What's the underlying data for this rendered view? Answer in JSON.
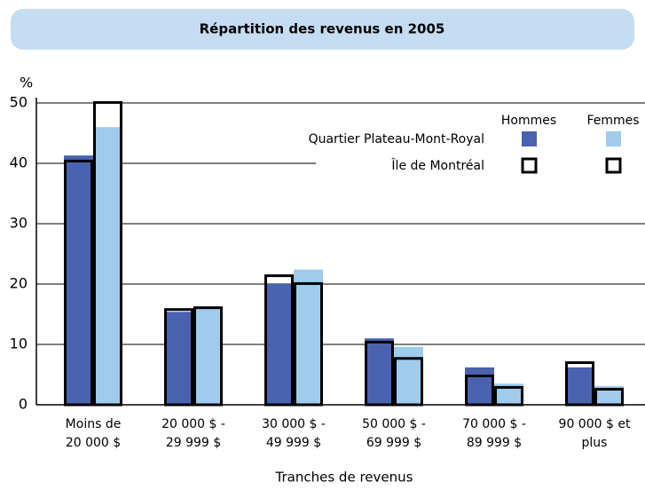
{
  "chart_data": {
    "type": "overlay-bar",
    "title": "Répartition des revenus en 2005",
    "y_label": "%",
    "x_label": "Tranches de revenus",
    "categories": [
      [
        "Moins de",
        "20 000 $"
      ],
      [
        "20 000 $ -",
        "29 999 $"
      ],
      [
        "30 000 $ -",
        "49 999 $"
      ],
      [
        "50 000 $ -",
        "69 999 $"
      ],
      [
        "70 000 $ -",
        "89 999 $"
      ],
      [
        "90 000 $ et",
        "plus"
      ]
    ],
    "columns": [
      "Hommes",
      "Femmes"
    ],
    "series": [
      {
        "name": "Quartier Plateau-Mont-Royal",
        "style": "filled",
        "colors": [
          "#4a62b0",
          "#9fcbec"
        ],
        "values": [
          [
            41.3,
            15.4,
            20,
            11,
            6.2,
            6.2
          ],
          [
            46,
            15.9,
            22.4,
            9.6,
            3.5,
            3.1
          ]
        ]
      },
      {
        "name": "Île de Montréal",
        "style": "outline",
        "colors": [
          "#000000",
          "#000000"
        ],
        "values": [
          [
            40.6,
            16,
            21.6,
            10.6,
            5,
            7.2
          ],
          [
            50.3,
            16.3,
            20.3,
            7.9,
            3.1,
            2.8
          ]
        ]
      }
    ],
    "ylim": [
      0,
      50
    ],
    "yticks": [
      0,
      10,
      20,
      30,
      40,
      50
    ],
    "grid": true
  }
}
